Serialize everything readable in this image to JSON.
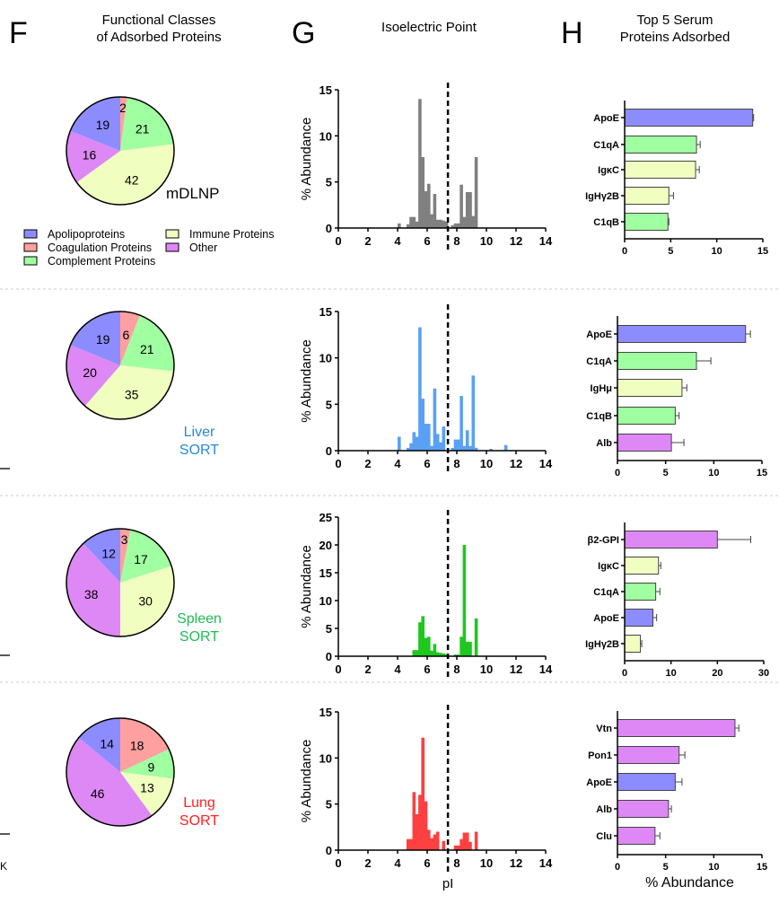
{
  "panels": {
    "F": {
      "letter": "F",
      "title_line1": "Functional Classes",
      "title_line2": "of Adsorbed Proteins"
    },
    "G": {
      "letter": "G",
      "title_line1": "Isoelectric Point"
    },
    "H": {
      "letter": "H",
      "title_line1": "Top 5 Serum",
      "title_line2": "Proteins Adsorbed"
    }
  },
  "legend": [
    {
      "key": "apo",
      "label": "Apolipoproteins"
    },
    {
      "key": "coag",
      "label": "Coagulation Proteins"
    },
    {
      "key": "comp",
      "label": "Complement Proteins"
    },
    {
      "key": "imm",
      "label": "Immune Proteins"
    },
    {
      "key": "other",
      "label": "Other"
    }
  ],
  "class_colors": {
    "apo": "#8c8cff",
    "coag": "#ffa0a0",
    "comp": "#a0ffa0",
    "imm": "#f0ffc0",
    "other": "#dd88f5"
  },
  "edge_fragment": "K",
  "chart_data": [
    {
      "formulation": "mDLNP",
      "label_line1": "mDLNP",
      "label_line2": "",
      "label_color": "#000000",
      "hist_color": "#808080",
      "pie": {
        "type": "pie",
        "slices": [
          {
            "key": "coag",
            "value": 2
          },
          {
            "key": "comp",
            "value": 21
          },
          {
            "key": "imm",
            "value": 42
          },
          {
            "key": "other",
            "value": 16
          },
          {
            "key": "apo",
            "value": 19
          }
        ]
      },
      "histogram": {
        "type": "bar",
        "xlabel": "",
        "ylabel": "% Abundance",
        "xlim": [
          0,
          14
        ],
        "ylim": [
          0,
          15
        ],
        "xticks": [
          0,
          2,
          4,
          6,
          8,
          10,
          12,
          14
        ],
        "yticks": [
          0,
          5,
          10,
          15
        ],
        "bin_width": 0.2,
        "reference_line_pI": 7.4,
        "bins": [
          [
            4.0,
            0.5
          ],
          [
            4.6,
            0.4
          ],
          [
            4.8,
            1.2
          ],
          [
            5.0,
            1.2
          ],
          [
            5.2,
            0.7
          ],
          [
            5.4,
            14
          ],
          [
            5.6,
            7.7
          ],
          [
            5.8,
            4.0
          ],
          [
            6.0,
            4.8
          ],
          [
            6.2,
            1.5
          ],
          [
            6.4,
            3.7
          ],
          [
            6.6,
            0.9
          ],
          [
            6.8,
            0.9
          ],
          [
            7.0,
            0.8
          ],
          [
            7.2,
            0.7
          ],
          [
            7.6,
            0.3
          ],
          [
            7.8,
            0.5
          ],
          [
            8.0,
            0.5
          ],
          [
            8.2,
            4.7
          ],
          [
            8.4,
            1.2
          ],
          [
            8.6,
            3.9
          ],
          [
            8.8,
            3.9
          ],
          [
            9.0,
            1.3
          ],
          [
            9.2,
            7.7
          ]
        ]
      },
      "top5": {
        "type": "bar",
        "orientation": "horizontal",
        "xlabel": "",
        "xlim": [
          0,
          15
        ],
        "xticks": [
          0,
          5,
          10,
          15
        ],
        "bars": [
          {
            "protein": "ApoE",
            "value": 13.9,
            "error": 0.1,
            "key": "apo"
          },
          {
            "protein": "C1qA",
            "value": 7.8,
            "error": 0.4,
            "key": "comp"
          },
          {
            "protein": "IgκC",
            "value": 7.7,
            "error": 0.4,
            "key": "imm"
          },
          {
            "protein": "IgHγ2B",
            "value": 4.8,
            "error": 0.5,
            "key": "imm"
          },
          {
            "protein": "C1qB",
            "value": 4.7,
            "error": 0.1,
            "key": "comp"
          }
        ]
      }
    },
    {
      "formulation": "Liver SORT",
      "label_line1": "Liver",
      "label_line2": "SORT",
      "label_color": "#2b88d8",
      "hist_color": "#5aa0f5",
      "pie": {
        "type": "pie",
        "slices": [
          {
            "key": "coag",
            "value": 6
          },
          {
            "key": "comp",
            "value": 21
          },
          {
            "key": "imm",
            "value": 35
          },
          {
            "key": "other",
            "value": 20
          },
          {
            "key": "apo",
            "value": 19
          }
        ]
      },
      "histogram": {
        "type": "bar",
        "xlabel": "",
        "ylabel": "% Abundance",
        "xlim": [
          0,
          14
        ],
        "ylim": [
          0,
          15
        ],
        "xticks": [
          0,
          2,
          4,
          6,
          8,
          10,
          12,
          14
        ],
        "yticks": [
          0,
          5,
          10,
          15
        ],
        "bin_width": 0.2,
        "reference_line_pI": 7.4,
        "bins": [
          [
            4.0,
            1.5
          ],
          [
            4.6,
            0.3
          ],
          [
            4.8,
            0.8
          ],
          [
            5.0,
            2.0
          ],
          [
            5.2,
            1.5
          ],
          [
            5.4,
            13.3
          ],
          [
            5.6,
            5.6
          ],
          [
            5.8,
            2.9
          ],
          [
            6.0,
            2.9
          ],
          [
            6.2,
            0.5
          ],
          [
            6.4,
            6.7
          ],
          [
            6.6,
            1.8
          ],
          [
            6.8,
            0.9
          ],
          [
            7.0,
            2.6
          ],
          [
            7.6,
            0.3
          ],
          [
            7.8,
            1.2
          ],
          [
            8.0,
            1.2
          ],
          [
            8.2,
            5.9
          ],
          [
            8.4,
            0.5
          ],
          [
            8.6,
            2.2
          ],
          [
            8.8,
            0.5
          ],
          [
            9.0,
            8.1
          ],
          [
            9.2,
            0.3
          ],
          [
            10.2,
            0.2
          ],
          [
            11.2,
            0.6
          ]
        ]
      },
      "top5": {
        "type": "bar",
        "orientation": "horizontal",
        "xlabel": "",
        "xlim": [
          0,
          15
        ],
        "xticks": [
          0,
          5,
          10,
          15
        ],
        "bars": [
          {
            "protein": "ApoE",
            "value": 13.3,
            "error": 0.5,
            "key": "apo"
          },
          {
            "protein": "C1qA",
            "value": 8.2,
            "error": 1.5,
            "key": "comp"
          },
          {
            "protein": "IgHμ",
            "value": 6.7,
            "error": 0.5,
            "key": "imm"
          },
          {
            "protein": "C1qB",
            "value": 6.0,
            "error": 0.4,
            "key": "comp"
          },
          {
            "protein": "Alb",
            "value": 5.6,
            "error": 1.3,
            "key": "other"
          }
        ]
      }
    },
    {
      "formulation": "Spleen SORT",
      "label_line1": "Spleen",
      "label_line2": "SORT",
      "label_color": "#22bb55",
      "hist_color": "#1ec81e",
      "pie": {
        "type": "pie",
        "slices": [
          {
            "key": "coag",
            "value": 3
          },
          {
            "key": "comp",
            "value": 17
          },
          {
            "key": "imm",
            "value": 30
          },
          {
            "key": "other",
            "value": 38
          },
          {
            "key": "apo",
            "value": 12
          }
        ]
      },
      "histogram": {
        "type": "bar",
        "xlabel": "",
        "ylabel": "% Abundance",
        "xlim": [
          0,
          14
        ],
        "ylim": [
          0,
          25
        ],
        "xticks": [
          0,
          2,
          4,
          6,
          8,
          10,
          12,
          14
        ],
        "yticks": [
          0,
          5,
          10,
          15,
          20,
          25
        ],
        "bin_width": 0.2,
        "reference_line_pI": 7.4,
        "bins": [
          [
            5.0,
            1.1
          ],
          [
            5.2,
            1.1
          ],
          [
            5.4,
            6.1
          ],
          [
            5.6,
            7.2
          ],
          [
            5.8,
            3.3
          ],
          [
            6.0,
            3.5
          ],
          [
            6.2,
            1.0
          ],
          [
            6.4,
            2.2
          ],
          [
            6.6,
            0.7
          ],
          [
            6.8,
            0.6
          ],
          [
            7.0,
            0.5
          ],
          [
            7.2,
            0.4
          ],
          [
            7.8,
            0.3
          ],
          [
            8.0,
            0.3
          ],
          [
            8.2,
            3.5
          ],
          [
            8.4,
            20
          ],
          [
            8.6,
            2.6
          ],
          [
            8.8,
            2.6
          ],
          [
            9.2,
            6.8
          ]
        ]
      },
      "top5": {
        "type": "bar",
        "orientation": "horizontal",
        "xlabel": "",
        "xlim": [
          0,
          30
        ],
        "xticks": [
          0,
          10,
          20,
          30
        ],
        "bars": [
          {
            "protein": "β2-GPI",
            "value": 20.0,
            "error": 7.2,
            "key": "other"
          },
          {
            "protein": "IgκC",
            "value": 7.3,
            "error": 0.5,
            "key": "imm"
          },
          {
            "protein": "C1qA",
            "value": 6.7,
            "error": 0.9,
            "key": "comp"
          },
          {
            "protein": "ApoE",
            "value": 6.1,
            "error": 0.8,
            "key": "apo"
          },
          {
            "protein": "IgHγ2B",
            "value": 3.4,
            "error": 0.3,
            "key": "imm"
          }
        ]
      }
    },
    {
      "formulation": "Lung SORT",
      "label_line1": "Lung",
      "label_line2": "SORT",
      "label_color": "#ff2020",
      "hist_color": "#ff4040",
      "pie": {
        "type": "pie",
        "slices": [
          {
            "key": "coag",
            "value": 18
          },
          {
            "key": "comp",
            "value": 9
          },
          {
            "key": "imm",
            "value": 13
          },
          {
            "key": "other",
            "value": 46
          },
          {
            "key": "apo",
            "value": 14
          }
        ]
      },
      "histogram": {
        "type": "bar",
        "xlabel": "pI",
        "ylabel": "% Abundance",
        "xlim": [
          0,
          14
        ],
        "ylim": [
          0,
          15
        ],
        "xticks": [
          0,
          2,
          4,
          6,
          8,
          10,
          12,
          14
        ],
        "yticks": [
          0,
          5,
          10,
          15
        ],
        "bin_width": 0.2,
        "reference_line_pI": 7.4,
        "bins": [
          [
            4.6,
            1.2
          ],
          [
            4.8,
            1.2
          ],
          [
            5.0,
            6.3
          ],
          [
            5.2,
            3.9
          ],
          [
            5.4,
            6.0
          ],
          [
            5.6,
            12.2
          ],
          [
            5.8,
            5.3
          ],
          [
            6.0,
            2.2
          ],
          [
            6.2,
            1.3
          ],
          [
            6.4,
            1.7
          ],
          [
            6.6,
            2.0
          ],
          [
            7.0,
            1.0
          ],
          [
            7.8,
            0.5
          ],
          [
            8.0,
            0.5
          ],
          [
            8.2,
            1.2
          ],
          [
            8.4,
            1.9
          ],
          [
            8.6,
            1.9
          ],
          [
            8.8,
            0.9
          ],
          [
            9.2,
            2.0
          ]
        ]
      },
      "top5": {
        "type": "bar",
        "orientation": "horizontal",
        "xlabel": "% Abundance",
        "xlim": [
          0,
          15
        ],
        "xticks": [
          0,
          5,
          10,
          15
        ],
        "bars": [
          {
            "protein": "Vtn",
            "value": 12.2,
            "error": 0.4,
            "key": "other"
          },
          {
            "protein": "Pon1",
            "value": 6.4,
            "error": 0.6,
            "key": "other"
          },
          {
            "protein": "ApoE",
            "value": 6.0,
            "error": 0.7,
            "key": "apo"
          },
          {
            "protein": "Alb",
            "value": 5.3,
            "error": 0.3,
            "key": "other"
          },
          {
            "protein": "Clu",
            "value": 3.9,
            "error": 0.5,
            "key": "other"
          }
        ]
      }
    }
  ]
}
